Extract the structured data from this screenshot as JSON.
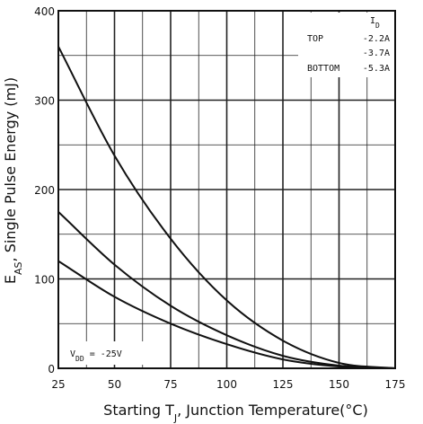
{
  "chart_data": {
    "type": "line",
    "xlabel_parts": [
      "Starting T",
      "J",
      ", Junction Temperature(°C)"
    ],
    "ylabel_parts": [
      "E",
      "AS",
      ", Single Pulse Energy (mJ)"
    ],
    "xlim": [
      25,
      175
    ],
    "ylim": [
      0,
      400
    ],
    "x_ticks": [
      25,
      50,
      75,
      100,
      125,
      150,
      175
    ],
    "x_tick_labels": [
      "25",
      "50",
      "75",
      "100",
      "125",
      "150",
      "175"
    ],
    "y_ticks": [
      0,
      100,
      200,
      300,
      400
    ],
    "y_tick_labels": [
      "0",
      "100",
      "200",
      "300",
      "400"
    ],
    "grid": true,
    "legend": {
      "placement": "top-right",
      "header_parts": [
        "I",
        "D"
      ],
      "rows": [
        {
          "label": "TOP",
          "value": "-2.2A"
        },
        {
          "label": "",
          "value": "-3.7A"
        },
        {
          "label": "BOTTOM",
          "value": "-5.3A"
        }
      ]
    },
    "annotation_parts": [
      "V",
      "DD",
      " = -25V"
    ],
    "series": [
      {
        "id": "top",
        "x": [
          25,
          50,
          75,
          100,
          125,
          150,
          175
        ],
        "values": [
          360,
          238,
          145,
          76,
          31,
          6,
          0
        ]
      },
      {
        "id": "mid",
        "x": [
          25,
          50,
          75,
          100,
          125,
          150,
          175
        ],
        "values": [
          175,
          116,
          70,
          37,
          14,
          3,
          0
        ]
      },
      {
        "id": "bottom",
        "x": [
          25,
          50,
          75,
          100,
          125,
          150,
          175
        ],
        "values": [
          120,
          80,
          50,
          27,
          10,
          2,
          0
        ]
      }
    ]
  }
}
